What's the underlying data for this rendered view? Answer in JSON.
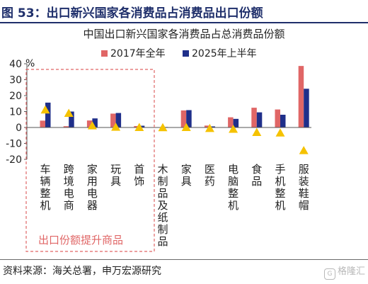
{
  "figure": {
    "title": "图 53：出口新兴国家各消费品占消费品出口份额"
  },
  "source": "资料来源：海关总署，申万宏源研究",
  "watermark": {
    "logo": "G",
    "text": "格隆汇"
  },
  "chart_data": {
    "type": "bar",
    "title": "中国出口新兴国家各消费品占总消费品份额",
    "y_unit": "%",
    "ylim": [
      -20,
      40
    ],
    "yticks": [
      -20,
      -10,
      0,
      10,
      20,
      30,
      40
    ],
    "categories": [
      "车辆整机",
      "跨境电商",
      "家用电器",
      "玩具",
      "首饰",
      "木制品及纸制品",
      "家具",
      "医药",
      "电脑整机",
      "食品",
      "手机整机",
      "服装鞋帽"
    ],
    "series": [
      {
        "name": "2017年全年",
        "color": "#e06666",
        "values": [
          4.3,
          0.8,
          4.4,
          8.7,
          0.9,
          0.2,
          10.7,
          1.2,
          6.4,
          12.4,
          11.3,
          38.6
        ]
      },
      {
        "name": "2025年上半年",
        "color": "#1f2f8a",
        "values": [
          15.6,
          10.0,
          5.7,
          9.1,
          1.1,
          0.3,
          10.9,
          0.7,
          5.4,
          9.5,
          8.0,
          24.3
        ]
      },
      {
        "name": "",
        "type": "triangle",
        "color": "#f5c200",
        "values": [
          11.2,
          9.1,
          1.3,
          0.4,
          0.2,
          0.1,
          0.2,
          -0.4,
          -0.9,
          -2.9,
          -3.2,
          -14.3
        ]
      }
    ],
    "legend_position": "top",
    "annotation": {
      "text": "出口份额提升商品",
      "box": "dashed-red",
      "covers_categories": [
        "车辆整机",
        "跨境电商",
        "家用电器",
        "玩具",
        "首饰"
      ]
    }
  }
}
